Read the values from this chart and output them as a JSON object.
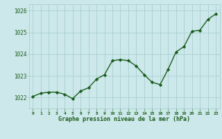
{
  "x": [
    0,
    1,
    2,
    3,
    4,
    5,
    6,
    7,
    8,
    9,
    10,
    11,
    12,
    13,
    14,
    15,
    16,
    17,
    18,
    19,
    20,
    21,
    22,
    23
  ],
  "y": [
    1022.05,
    1022.2,
    1022.25,
    1022.25,
    1022.15,
    1021.95,
    1022.3,
    1022.45,
    1022.85,
    1023.05,
    1023.7,
    1023.75,
    1023.7,
    1023.45,
    1023.05,
    1022.7,
    1022.6,
    1023.3,
    1024.1,
    1024.35,
    1025.05,
    1025.1,
    1025.6,
    1025.85
  ],
  "line_color": "#1a5c1a",
  "marker": "D",
  "marker_size": 2.2,
  "bg_color": "#cce8ea",
  "grid_color": "#a8cfd2",
  "axis_label_color": "#1a5c1a",
  "tick_label_color": "#1a5c1a",
  "xlabel": "Graphe pression niveau de la mer (hPa)",
  "ylim": [
    1021.5,
    1026.3
  ],
  "yticks": [
    1022,
    1023,
    1024,
    1025,
    1026
  ],
  "xticks": [
    0,
    1,
    2,
    3,
    4,
    5,
    6,
    7,
    8,
    9,
    10,
    11,
    12,
    13,
    14,
    15,
    16,
    17,
    18,
    19,
    20,
    21,
    22,
    23
  ],
  "line_width": 1.0
}
